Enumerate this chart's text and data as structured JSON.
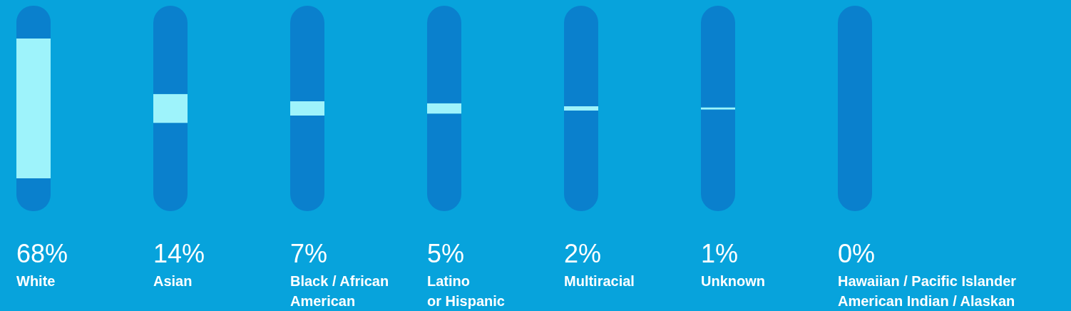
{
  "chart_data": {
    "type": "bar",
    "stacked": true,
    "categories": [
      "White",
      "Asian",
      "Black / African\nAmerican",
      "Latino\nor Hispanic",
      "Multiracial",
      "Unknown",
      "Hawaiian / Pacific Islander\nAmerican Indian / Alaskan"
    ],
    "series": [
      {
        "color": "#0a80cd",
        "values": [
          16,
          43,
          46.5,
          47.5,
          49,
          49.5,
          50
        ]
      },
      {
        "color": "#9ef3fb",
        "values": [
          68,
          14,
          7,
          5,
          2,
          1,
          0
        ],
        "value_labels": [
          "68%",
          "14%",
          "7%",
          "5%",
          "2%",
          "1%",
          "0%"
        ]
      },
      {
        "color": "#0a80cd",
        "values": [
          16,
          43,
          46.5,
          47.5,
          49,
          49.5,
          50
        ]
      }
    ]
  }
}
